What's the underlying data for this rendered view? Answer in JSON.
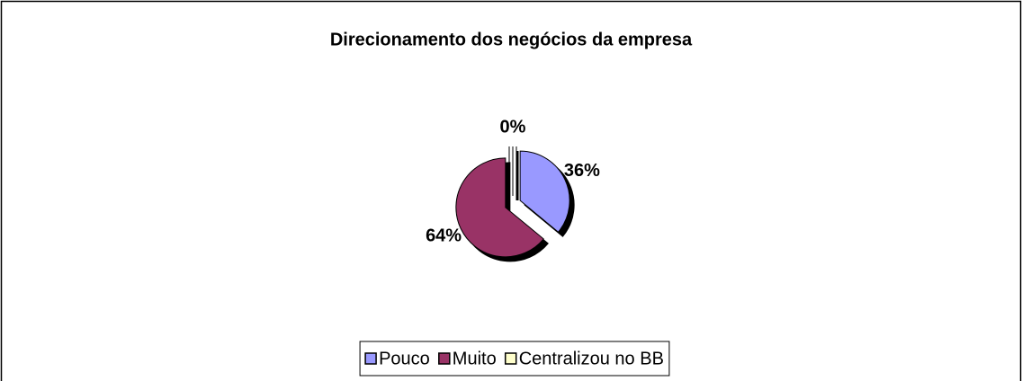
{
  "chart_data": {
    "type": "pie",
    "title": "Direcionamento dos negócios da empresa",
    "categories": [
      "Pouco",
      "Muito",
      "Centralizou no BB"
    ],
    "values": [
      36,
      64,
      0
    ],
    "value_labels": [
      "36%",
      "64%",
      "0%"
    ],
    "colors": [
      "#9999ff",
      "#993366",
      "#ffffcc"
    ],
    "legend": "bottom"
  }
}
